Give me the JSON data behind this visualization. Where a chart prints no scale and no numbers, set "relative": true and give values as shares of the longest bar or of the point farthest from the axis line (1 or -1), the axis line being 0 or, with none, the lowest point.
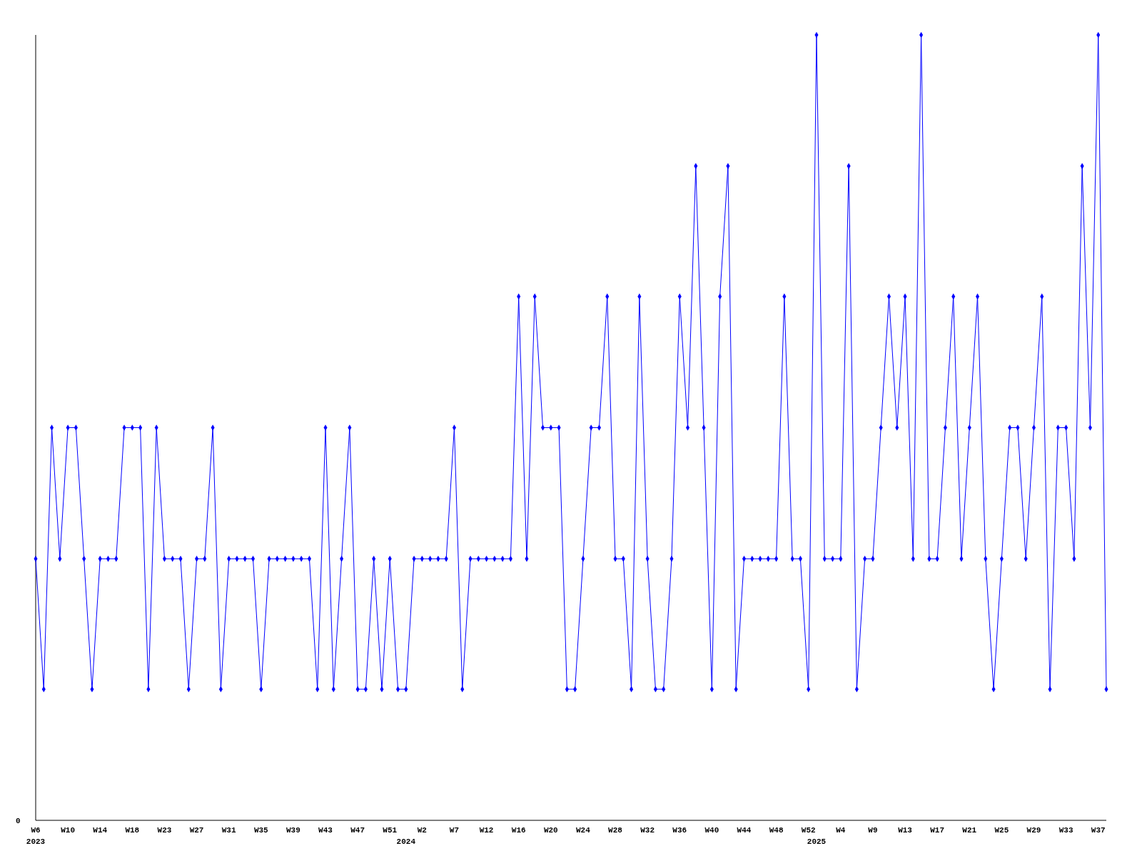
{
  "chart_data": {
    "type": "line",
    "relative": true,
    "categories": [
      "W6\n2023",
      null,
      null,
      null,
      "W10",
      null,
      null,
      null,
      "W14",
      null,
      null,
      null,
      "W18",
      null,
      null,
      null,
      "W23",
      null,
      null,
      null,
      "W27",
      null,
      null,
      null,
      "W31",
      null,
      null,
      null,
      "W35",
      null,
      null,
      null,
      "W39",
      null,
      null,
      null,
      "W43",
      null,
      null,
      null,
      "W47",
      null,
      null,
      null,
      "W51",
      null,
      "\n2024",
      null,
      "W2",
      null,
      null,
      null,
      "W7",
      null,
      null,
      null,
      "W12",
      null,
      null,
      null,
      "W16",
      null,
      null,
      null,
      "W20",
      null,
      null,
      null,
      "W24",
      null,
      null,
      null,
      "W28",
      null,
      null,
      null,
      "W32",
      null,
      null,
      null,
      "W36",
      null,
      null,
      null,
      "W40",
      null,
      null,
      null,
      "W44",
      null,
      null,
      null,
      "W48",
      null,
      null,
      null,
      "W52",
      "\n2025",
      null,
      null,
      "W4",
      null,
      null,
      null,
      "W9",
      null,
      null,
      null,
      "W13",
      null,
      null,
      null,
      "W17",
      null,
      null,
      null,
      "W21",
      null,
      null,
      null,
      "W25",
      null,
      null,
      null,
      "W29",
      null,
      null,
      null,
      "W33",
      null,
      null,
      null,
      "W37",
      null
    ],
    "series": [
      {
        "color": "#0000ff",
        "values": [
          0.333,
          0.167,
          0.5,
          0.333,
          0.5,
          0.5,
          0.333,
          0.167,
          0.333,
          0.333,
          0.333,
          0.5,
          0.5,
          0.5,
          0.167,
          0.5,
          0.333,
          0.333,
          0.333,
          0.167,
          0.333,
          0.333,
          0.5,
          0.167,
          0.333,
          0.333,
          0.333,
          0.333,
          0.167,
          0.333,
          0.333,
          0.333,
          0.333,
          0.333,
          0.333,
          0.167,
          0.5,
          0.167,
          0.333,
          0.5,
          0.167,
          0.167,
          0.333,
          0.167,
          0.333,
          0.167,
          0.167,
          0.333,
          0.333,
          0.333,
          0.333,
          0.333,
          0.5,
          0.167,
          0.333,
          0.333,
          0.333,
          0.333,
          0.333,
          0.333,
          0.667,
          0.333,
          0.667,
          0.5,
          0.5,
          0.5,
          0.167,
          0.167,
          0.333,
          0.5,
          0.5,
          0.667,
          0.333,
          0.333,
          0.167,
          0.667,
          0.333,
          0.167,
          0.167,
          0.333,
          0.667,
          0.5,
          0.833,
          0.5,
          0.167,
          0.667,
          0.833,
          0.167,
          0.333,
          0.333,
          0.333,
          0.333,
          0.333,
          0.667,
          0.333,
          0.333,
          0.167,
          1,
          0.333,
          0.333,
          0.333,
          0.833,
          0.167,
          0.333,
          0.333,
          0.5,
          0.667,
          0.5,
          0.667,
          0.333,
          1,
          0.333,
          0.333,
          0.5,
          0.667,
          0.333,
          0.5,
          0.667,
          0.333,
          0.167,
          0.333,
          0.5,
          0.5,
          0.333,
          0.5,
          0.667,
          0.167,
          0.5,
          0.5,
          0.333,
          0.833,
          0.5,
          1,
          0.167
        ]
      }
    ],
    "annotations": [
      "0"
    ],
    "marker": "diamond"
  }
}
